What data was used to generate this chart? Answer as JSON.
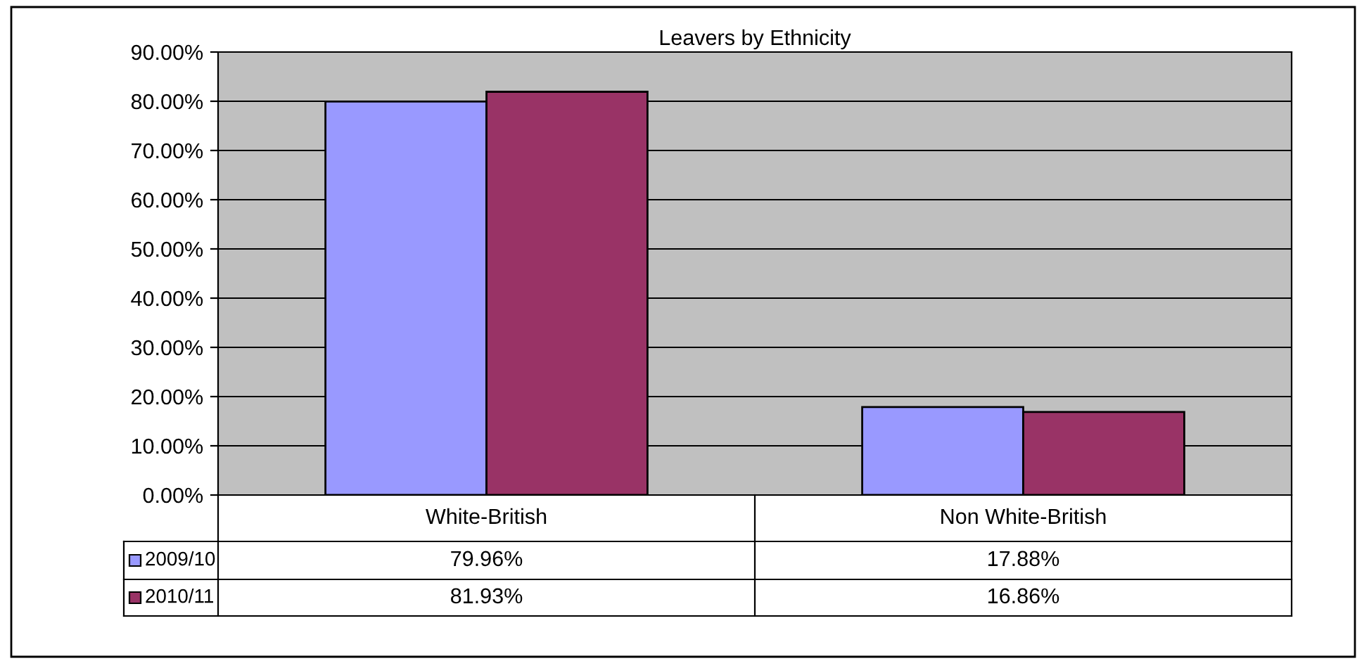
{
  "chart_data": {
    "type": "bar",
    "title": "Leavers by Ethnicity",
    "categories": [
      "White-British",
      "Non White-British"
    ],
    "series": [
      {
        "name": "2009/10",
        "color": "#9999ff",
        "values": [
          79.96,
          17.88
        ],
        "value_labels": [
          "79.96%",
          "17.88%"
        ]
      },
      {
        "name": "2010/11",
        "color": "#993366",
        "values": [
          81.93,
          16.86
        ],
        "value_labels": [
          "81.93%",
          "16.86%"
        ]
      }
    ],
    "ylim": [
      0,
      90
    ],
    "yticks": [
      {
        "value": 0,
        "label": "0.00%"
      },
      {
        "value": 10,
        "label": "10.00%"
      },
      {
        "value": 20,
        "label": "20.00%"
      },
      {
        "value": 30,
        "label": "30.00%"
      },
      {
        "value": 40,
        "label": "40.00%"
      },
      {
        "value": 50,
        "label": "50.00%"
      },
      {
        "value": 60,
        "label": "60.00%"
      },
      {
        "value": 70,
        "label": "70.00%"
      },
      {
        "value": 80,
        "label": "80.00%"
      },
      {
        "value": 90,
        "label": "90.00%"
      }
    ],
    "grid": "y",
    "legend": "bottom left"
  }
}
